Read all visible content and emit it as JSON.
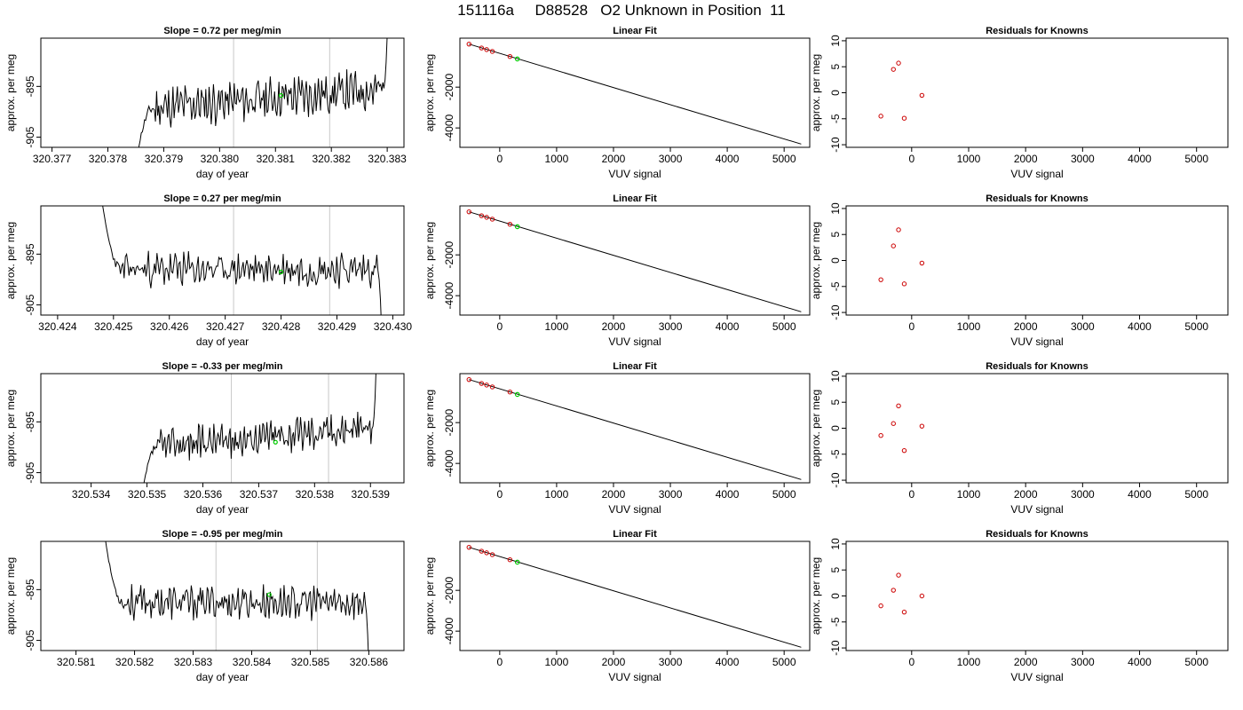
{
  "figure": {
    "title": "151116a     D88528   O2 Unknown in Position  11",
    "colors": {
      "trace": "#000000",
      "known_points": "#cc0000",
      "unknown_point": "#00cc00",
      "marker_lines": "#c8c8c8"
    }
  },
  "chart_data": [
    {
      "type": "line",
      "row": 1,
      "panel": "trace",
      "title": "Slope =  0.72  per meg/min",
      "xlabel": "day of year",
      "ylabel": "approx. per meg",
      "xlim": [
        320.3768,
        320.3833
      ],
      "ylim": [
        -907,
        -885.5
      ],
      "xticks": [
        "320.377",
        "320.378",
        "320.379",
        "320.380",
        "320.381",
        "320.382",
        "320.383"
      ],
      "yticks": [
        "-895",
        "-905"
      ],
      "ytick_values": [
        -895,
        -905
      ],
      "trace": {
        "start_x": 320.3785,
        "end_x": 320.383,
        "start_y": -910,
        "end_y": -885,
        "baseline_start": -899.5,
        "baseline_end": -895.5,
        "amplitude": 3.2,
        "seed": 11
      },
      "marker_lines_x": [
        320.38025,
        320.38197
      ],
      "unknown_point": {
        "x": 320.3811,
        "y": -896.8
      }
    },
    {
      "type": "scatter",
      "row": 1,
      "panel": "linear_fit",
      "title": "Linear Fit",
      "xlabel": "VUV signal",
      "ylabel": "approx. per meg",
      "xlim": [
        -700,
        5450
      ],
      "ylim": [
        -4950,
        400
      ],
      "xticks": [
        "0",
        "1000",
        "2000",
        "3000",
        "4000",
        "5000"
      ],
      "yticks": [
        "-2000",
        "-4000"
      ],
      "ytick_values": [
        -2000,
        -4000
      ],
      "fit_line": {
        "x": [
          -540,
          5300
        ],
        "y": [
          110,
          -4790
        ]
      },
      "knowns": [
        {
          "x": -540,
          "y": 110
        },
        {
          "x": -320,
          "y": -80
        },
        {
          "x": -230,
          "y": -160
        },
        {
          "x": -130,
          "y": -250
        },
        {
          "x": 180,
          "y": -500
        }
      ],
      "unknown": {
        "x": 310,
        "y": -620
      }
    },
    {
      "type": "scatter",
      "row": 1,
      "panel": "residuals",
      "title": "Residuals for Knowns",
      "xlabel": "VUV signal",
      "ylabel": "approx. per meg",
      "xlim": [
        -1150,
        5550
      ],
      "ylim": [
        -10.5,
        10.5
      ],
      "xticks": [
        "0",
        "1000",
        "2000",
        "3000",
        "4000",
        "5000"
      ],
      "yticks": [
        "10",
        "5",
        "0",
        "-5",
        "-10"
      ],
      "ytick_values": [
        10,
        5,
        0,
        -5,
        -10
      ],
      "points": [
        {
          "x": -540,
          "y": -4.5
        },
        {
          "x": -320,
          "y": 4.5
        },
        {
          "x": -230,
          "y": 5.7
        },
        {
          "x": -130,
          "y": -4.9
        },
        {
          "x": 180,
          "y": -0.5
        }
      ]
    },
    {
      "type": "line",
      "row": 2,
      "panel": "trace",
      "title": "Slope =  0.27  per meg/min",
      "xlabel": "day of year",
      "ylabel": "approx. per meg",
      "xlim": [
        320.4237,
        320.4302
      ],
      "ylim": [
        -907,
        -885.5
      ],
      "xticks": [
        "320.424",
        "320.425",
        "320.426",
        "320.427",
        "320.428",
        "320.429",
        "320.430"
      ],
      "yticks": [
        "-895",
        "-905"
      ],
      "ytick_values": [
        -895,
        -905
      ],
      "trace": {
        "start_x": 320.4248,
        "end_x": 320.4298,
        "start_y": -885,
        "end_y": -910,
        "baseline_start": -898,
        "baseline_end": -898,
        "amplitude": 2.6,
        "seed": 23
      },
      "marker_lines_x": [
        320.42715,
        320.42887
      ],
      "unknown_point": {
        "x": 320.428,
        "y": -898.5
      }
    },
    {
      "type": "scatter",
      "row": 2,
      "panel": "linear_fit",
      "title": "Linear Fit",
      "xlabel": "VUV signal",
      "ylabel": "approx. per meg",
      "xlim": [
        -700,
        5450
      ],
      "ylim": [
        -4950,
        400
      ],
      "xticks": [
        "0",
        "1000",
        "2000",
        "3000",
        "4000",
        "5000"
      ],
      "yticks": [
        "-2000",
        "-4000"
      ],
      "ytick_values": [
        -2000,
        -4000
      ],
      "fit_line": {
        "x": [
          -540,
          5300
        ],
        "y": [
          110,
          -4790
        ]
      },
      "knowns": [
        {
          "x": -540,
          "y": 110
        },
        {
          "x": -320,
          "y": -80
        },
        {
          "x": -230,
          "y": -160
        },
        {
          "x": -130,
          "y": -250
        },
        {
          "x": 180,
          "y": -500
        }
      ],
      "unknown": {
        "x": 310,
        "y": -620
      }
    },
    {
      "type": "scatter",
      "row": 2,
      "panel": "residuals",
      "title": "Residuals for Knowns",
      "xlabel": "VUV signal",
      "ylabel": "approx. per meg",
      "xlim": [
        -1150,
        5550
      ],
      "ylim": [
        -10.5,
        10.5
      ],
      "xticks": [
        "0",
        "1000",
        "2000",
        "3000",
        "4000",
        "5000"
      ],
      "yticks": [
        "10",
        "5",
        "0",
        "-5",
        "-10"
      ],
      "ytick_values": [
        10,
        5,
        0,
        -5,
        -10
      ],
      "points": [
        {
          "x": -540,
          "y": -3.7
        },
        {
          "x": -320,
          "y": 2.8
        },
        {
          "x": -230,
          "y": 5.9
        },
        {
          "x": -130,
          "y": -4.5
        },
        {
          "x": 180,
          "y": -0.5
        }
      ]
    },
    {
      "type": "line",
      "row": 3,
      "panel": "trace",
      "title": "Slope =  -0.33  per meg/min",
      "xlabel": "day of year",
      "ylabel": "approx. per meg",
      "xlim": [
        320.5331,
        320.5396
      ],
      "ylim": [
        -907,
        -885.5
      ],
      "xticks": [
        "320.534",
        "320.535",
        "320.536",
        "320.537",
        "320.538",
        "320.539"
      ],
      "yticks": [
        "-895",
        "-905"
      ],
      "ytick_values": [
        -895,
        -905
      ],
      "trace": {
        "start_x": 320.5349,
        "end_x": 320.5391,
        "start_y": -910,
        "end_y": -885,
        "baseline_start": -900,
        "baseline_end": -896,
        "amplitude": 2.6,
        "seed": 37
      },
      "marker_lines_x": [
        320.53651,
        320.53825
      ],
      "unknown_point": {
        "x": 320.5373,
        "y": -899
      }
    },
    {
      "type": "scatter",
      "row": 3,
      "panel": "linear_fit",
      "title": "Linear Fit",
      "xlabel": "VUV signal",
      "ylabel": "approx. per meg",
      "xlim": [
        -700,
        5450
      ],
      "ylim": [
        -4950,
        400
      ],
      "xticks": [
        "0",
        "1000",
        "2000",
        "3000",
        "4000",
        "5000"
      ],
      "yticks": [
        "-2000",
        "-4000"
      ],
      "ytick_values": [
        -2000,
        -4000
      ],
      "fit_line": {
        "x": [
          -540,
          5300
        ],
        "y": [
          110,
          -4790
        ]
      },
      "knowns": [
        {
          "x": -540,
          "y": 110
        },
        {
          "x": -320,
          "y": -80
        },
        {
          "x": -230,
          "y": -160
        },
        {
          "x": -130,
          "y": -250
        },
        {
          "x": 180,
          "y": -500
        }
      ],
      "unknown": {
        "x": 310,
        "y": -620
      }
    },
    {
      "type": "scatter",
      "row": 3,
      "panel": "residuals",
      "title": "Residuals for Knowns",
      "xlabel": "VUV signal",
      "ylabel": "approx. per meg",
      "xlim": [
        -1150,
        5550
      ],
      "ylim": [
        -10.5,
        10.5
      ],
      "xticks": [
        "0",
        "1000",
        "2000",
        "3000",
        "4000",
        "5000"
      ],
      "yticks": [
        "10",
        "5",
        "0",
        "-5",
        "-10"
      ],
      "ytick_values": [
        10,
        5,
        0,
        -5,
        -10
      ],
      "points": [
        {
          "x": -540,
          "y": -1.4
        },
        {
          "x": -320,
          "y": 0.9
        },
        {
          "x": -230,
          "y": 4.3
        },
        {
          "x": -130,
          "y": -4.3
        },
        {
          "x": 180,
          "y": 0.4
        }
      ]
    },
    {
      "type": "line",
      "row": 4,
      "panel": "trace",
      "title": "Slope =  -0.95  per meg/min",
      "xlabel": "day of year",
      "ylabel": "approx. per meg",
      "xlim": [
        320.5804,
        320.5866
      ],
      "ylim": [
        -907,
        -885.5
      ],
      "xticks": [
        "320.581",
        "320.582",
        "320.583",
        "320.584",
        "320.585",
        "320.586"
      ],
      "yticks": [
        "-895",
        "-905"
      ],
      "ytick_values": [
        -895,
        -905
      ],
      "trace": {
        "start_x": 320.5815,
        "end_x": 320.586,
        "start_y": -885,
        "end_y": -910,
        "baseline_start": -897.5,
        "baseline_end": -897.5,
        "amplitude": 2.6,
        "seed": 53
      },
      "marker_lines_x": [
        320.58339,
        320.58512
      ],
      "unknown_point": {
        "x": 320.5843,
        "y": -896
      }
    },
    {
      "type": "scatter",
      "row": 4,
      "panel": "linear_fit",
      "title": "Linear Fit",
      "xlabel": "VUV signal",
      "ylabel": "approx. per meg",
      "xlim": [
        -700,
        5450
      ],
      "ylim": [
        -4950,
        400
      ],
      "xticks": [
        "0",
        "1000",
        "2000",
        "3000",
        "4000",
        "5000"
      ],
      "yticks": [
        "-2000",
        "-4000"
      ],
      "ytick_values": [
        -2000,
        -4000
      ],
      "fit_line": {
        "x": [
          -540,
          5300
        ],
        "y": [
          110,
          -4790
        ]
      },
      "knowns": [
        {
          "x": -540,
          "y": 110
        },
        {
          "x": -320,
          "y": -80
        },
        {
          "x": -230,
          "y": -160
        },
        {
          "x": -130,
          "y": -250
        },
        {
          "x": 180,
          "y": -500
        }
      ],
      "unknown": {
        "x": 310,
        "y": -620
      }
    },
    {
      "type": "scatter",
      "row": 4,
      "panel": "residuals",
      "title": "Residuals for Knowns",
      "xlabel": "VUV signal",
      "ylabel": "approx. per meg",
      "xlim": [
        -1150,
        5550
      ],
      "ylim": [
        -10.5,
        10.5
      ],
      "xticks": [
        "0",
        "1000",
        "2000",
        "3000",
        "4000",
        "5000"
      ],
      "yticks": [
        "10",
        "5",
        "0",
        "-5",
        "-10"
      ],
      "ytick_values": [
        10,
        5,
        0,
        -5,
        -10
      ],
      "points": [
        {
          "x": -540,
          "y": -1.9
        },
        {
          "x": -320,
          "y": 1.1
        },
        {
          "x": -230,
          "y": 4.0
        },
        {
          "x": -130,
          "y": -3.1
        },
        {
          "x": 180,
          "y": 0.0
        }
      ]
    }
  ]
}
